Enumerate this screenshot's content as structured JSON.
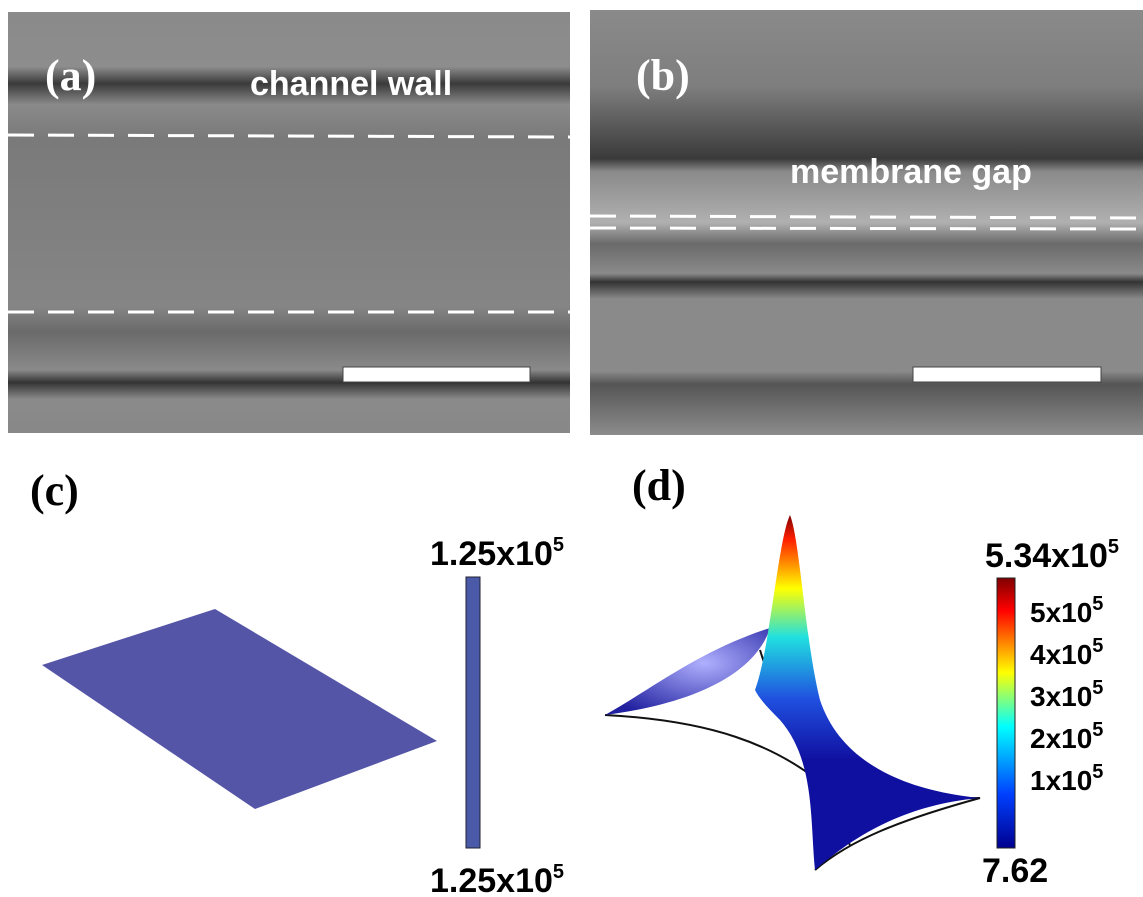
{
  "panels": [
    {
      "label": "(a)",
      "caption": "channel wall"
    },
    {
      "label": "(b)",
      "caption": "membrane gap"
    },
    {
      "label": "(c)",
      "colorbar": {
        "max": {
          "base": "1.25x10",
          "exp": "5"
        },
        "min": {
          "base": "1.25x10",
          "exp": "5"
        }
      }
    },
    {
      "label": "(d)",
      "colorbar": {
        "max": {
          "base": "5.34x10",
          "exp": "5"
        },
        "ticks": [
          {
            "base": "5x10",
            "exp": "5"
          },
          {
            "base": "4x10",
            "exp": "5"
          },
          {
            "base": "3x10",
            "exp": "5"
          },
          {
            "base": "2x10",
            "exp": "5"
          },
          {
            "base": "1x10",
            "exp": "5"
          }
        ],
        "min": "7.62"
      }
    }
  ]
}
